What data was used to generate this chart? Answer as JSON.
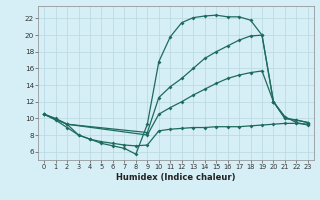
{
  "xlabel": "Humidex (Indice chaleur)",
  "bg_color": "#d6eef5",
  "grid_color": "#b8d8e0",
  "line_color": "#1e6b5e",
  "xlim": [
    -0.5,
    23.5
  ],
  "ylim": [
    5.0,
    23.5
  ],
  "yticks": [
    6,
    8,
    10,
    12,
    14,
    16,
    18,
    20,
    22
  ],
  "xticks": [
    0,
    1,
    2,
    3,
    4,
    5,
    6,
    7,
    8,
    9,
    10,
    11,
    12,
    13,
    14,
    15,
    16,
    17,
    18,
    19,
    20,
    21,
    22,
    23
  ],
  "line1_x": [
    0,
    1,
    2,
    3,
    4,
    5,
    6,
    7,
    8,
    9,
    10,
    11,
    12,
    13,
    14,
    15,
    16,
    17,
    18,
    19,
    20,
    21,
    22,
    23
  ],
  "line1_y": [
    10.5,
    9.8,
    8.9,
    8.0,
    7.5,
    7.0,
    6.7,
    6.4,
    5.7,
    9.3,
    16.8,
    19.8,
    21.5,
    22.1,
    22.3,
    22.4,
    22.2,
    22.2,
    21.8,
    20.0,
    12.0,
    10.2,
    9.5,
    9.2
  ],
  "line2_x": [
    0,
    2,
    9,
    10,
    11,
    12,
    13,
    14,
    15,
    16,
    17,
    18,
    19,
    20,
    21,
    22,
    23
  ],
  "line2_y": [
    10.5,
    9.3,
    8.3,
    12.5,
    13.8,
    14.8,
    16.0,
    17.2,
    18.0,
    18.7,
    19.4,
    19.9,
    20.0,
    12.0,
    10.0,
    9.8,
    9.5
  ],
  "line3_x": [
    0,
    2,
    9,
    10,
    11,
    12,
    13,
    14,
    15,
    16,
    17,
    18,
    19,
    20,
    21,
    22,
    23
  ],
  "line3_y": [
    10.5,
    9.3,
    8.0,
    10.5,
    11.3,
    12.0,
    12.8,
    13.5,
    14.2,
    14.8,
    15.2,
    15.5,
    15.7,
    12.0,
    10.0,
    9.8,
    9.5
  ],
  "line4_x": [
    0,
    1,
    2,
    3,
    4,
    5,
    6,
    7,
    8,
    9,
    10,
    11,
    12,
    13,
    14,
    15,
    16,
    17,
    18,
    19,
    20,
    21,
    22,
    23
  ],
  "line4_y": [
    10.5,
    10.0,
    9.3,
    8.0,
    7.5,
    7.2,
    7.0,
    6.8,
    6.7,
    6.8,
    8.5,
    8.7,
    8.8,
    8.9,
    8.9,
    9.0,
    9.0,
    9.0,
    9.1,
    9.2,
    9.3,
    9.4,
    9.4,
    9.3
  ]
}
